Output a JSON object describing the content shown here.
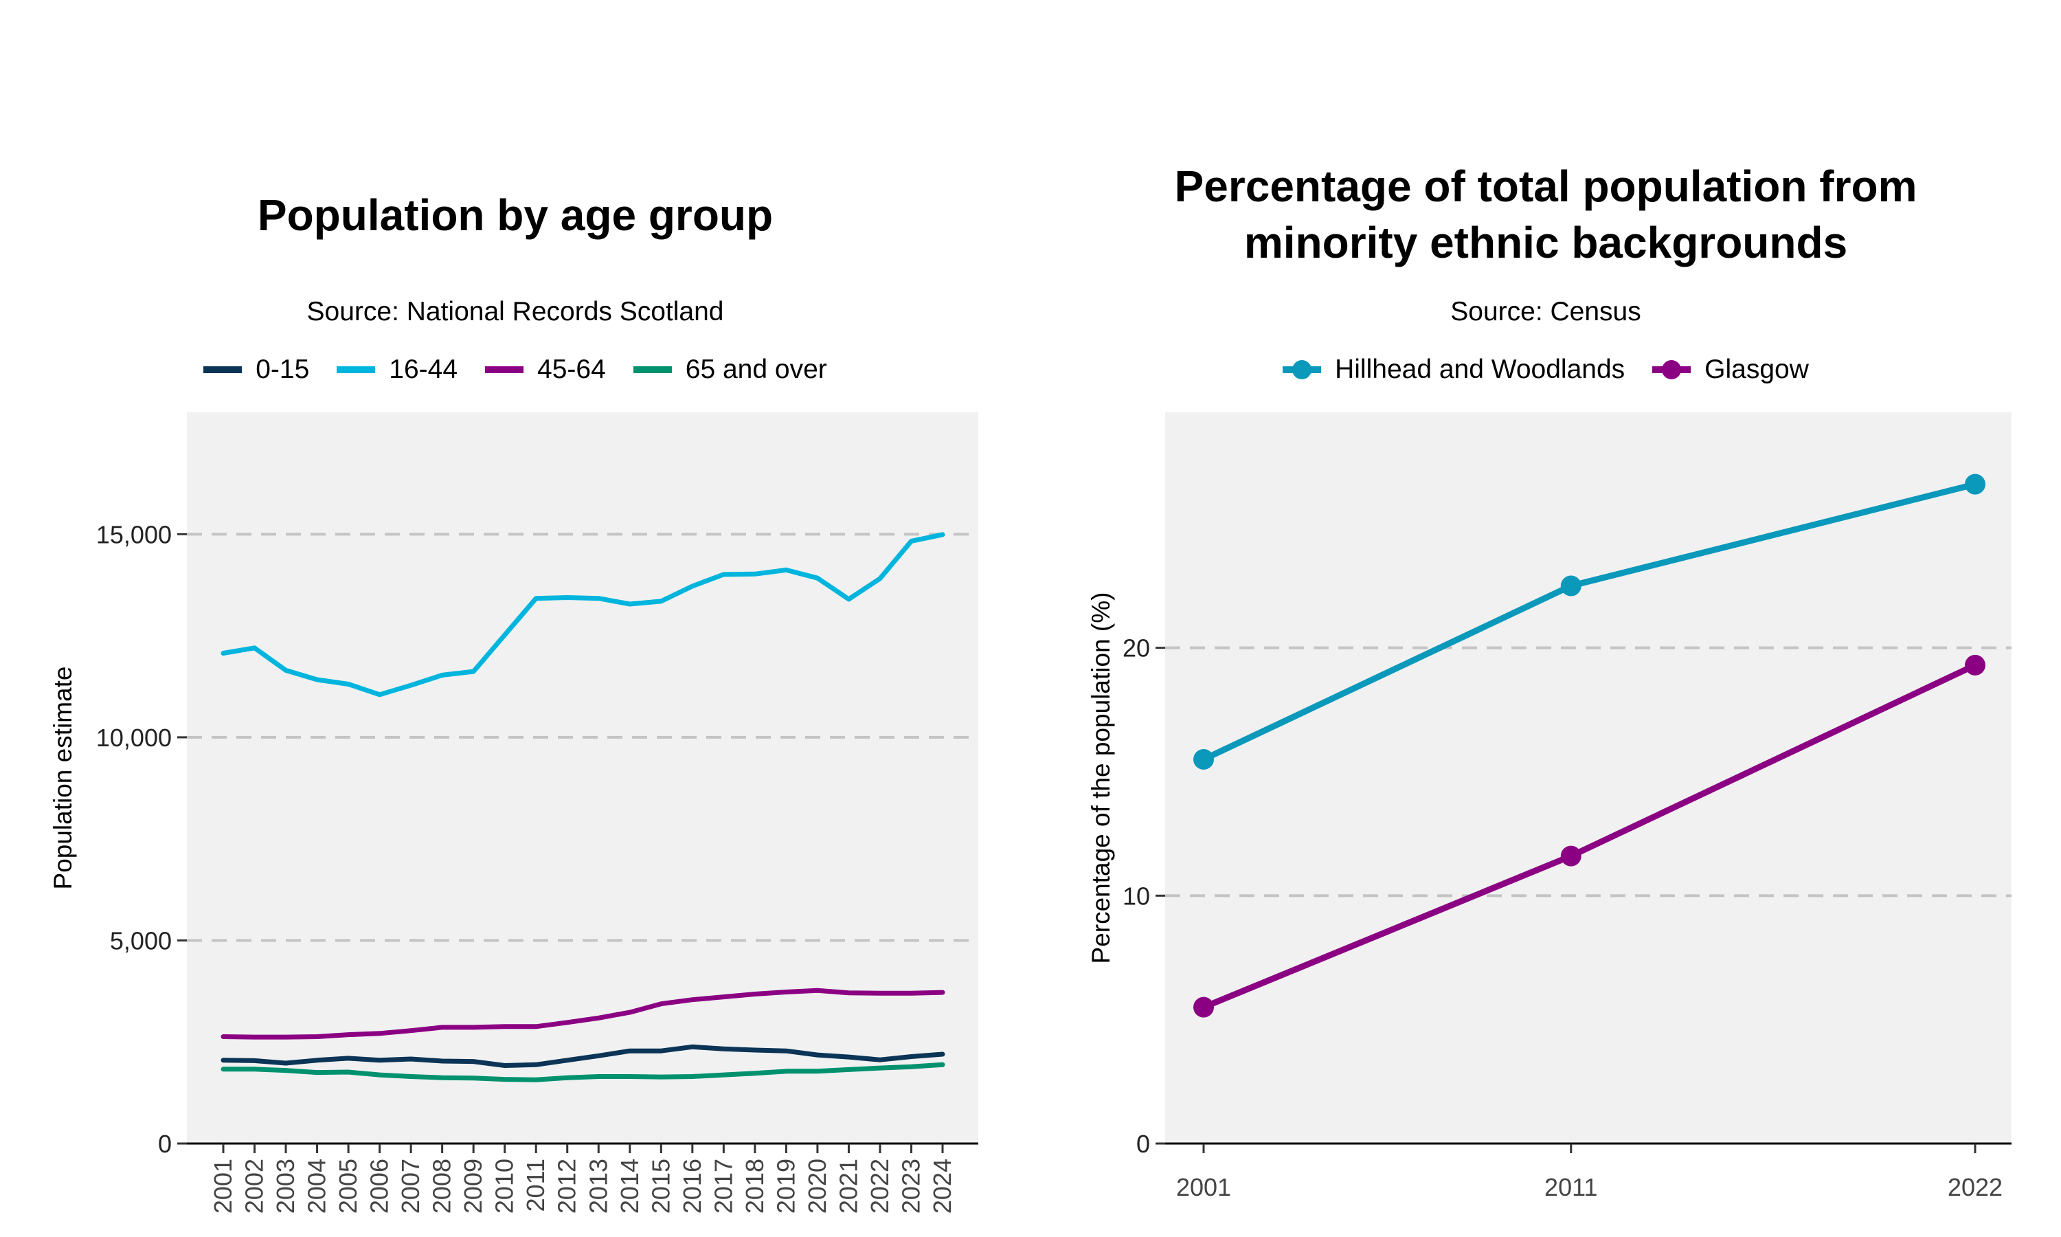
{
  "chart_data": [
    {
      "type": "line",
      "title": "Population by age group",
      "subtitle": "Source: National Records Scotland",
      "ylabel": "Population estimate",
      "xlabel": "",
      "ylim": [
        0,
        18000
      ],
      "yticks": [
        0,
        5000,
        10000,
        15000
      ],
      "ytick_labels": [
        "0",
        "5,000",
        "10,000",
        "15,000"
      ],
      "grid": "horizontal dashed",
      "legend_position": "top",
      "x": [
        "2001",
        "2002",
        "2003",
        "2004",
        "2005",
        "2006",
        "2007",
        "2008",
        "2009",
        "2010",
        "2011",
        "2012",
        "2013",
        "2014",
        "2015",
        "2016",
        "2017",
        "2018",
        "2019",
        "2020",
        "2021",
        "2022",
        "2023",
        "2024"
      ],
      "series": [
        {
          "name": "0-15",
          "color": "#0b3456",
          "values": [
            2050,
            2040,
            1980,
            2050,
            2100,
            2050,
            2080,
            2030,
            2020,
            1920,
            1940,
            2050,
            2160,
            2280,
            2280,
            2380,
            2330,
            2300,
            2280,
            2180,
            2130,
            2060,
            2140,
            2200
          ]
        },
        {
          "name": "16-44",
          "color": "#00b5dd",
          "values": [
            12070,
            12200,
            11650,
            11420,
            11310,
            11050,
            11280,
            11530,
            11620,
            12520,
            13420,
            13440,
            13420,
            13280,
            13350,
            13720,
            14010,
            14020,
            14120,
            13920,
            13400,
            13910,
            14830,
            14990
          ]
        },
        {
          "name": "45-64",
          "color": "#8b0083",
          "values": [
            2630,
            2620,
            2620,
            2630,
            2680,
            2710,
            2780,
            2860,
            2860,
            2880,
            2880,
            2980,
            3090,
            3230,
            3440,
            3540,
            3610,
            3680,
            3730,
            3770,
            3710,
            3700,
            3700,
            3720
          ]
        },
        {
          "name": "65 and over",
          "color": "#00916e",
          "values": [
            1830,
            1830,
            1800,
            1750,
            1760,
            1690,
            1650,
            1620,
            1610,
            1580,
            1570,
            1620,
            1650,
            1650,
            1640,
            1650,
            1690,
            1730,
            1780,
            1780,
            1820,
            1860,
            1890,
            1940
          ]
        }
      ]
    },
    {
      "type": "line",
      "title": "Percentage of total population from minority ethnic backgrounds",
      "title_lines": [
        "Percentage of total population from",
        "minority ethnic backgrounds"
      ],
      "subtitle": "Source: Census",
      "ylabel": "Percentage of the population (%)",
      "xlabel": "",
      "ylim": [
        0,
        29.5
      ],
      "yticks": [
        0,
        10,
        20
      ],
      "ytick_labels": [
        "0",
        "10",
        "20"
      ],
      "grid": "horizontal dashed",
      "legend_position": "top",
      "x": [
        "2001",
        "2011",
        "2022"
      ],
      "series": [
        {
          "name": "Hillhead and Woodlands",
          "color": "#0a98bb",
          "values": [
            15.5,
            22.5,
            26.6
          ]
        },
        {
          "name": "Glasgow",
          "color": "#8b0083",
          "values": [
            5.5,
            11.6,
            19.3
          ]
        }
      ]
    }
  ]
}
